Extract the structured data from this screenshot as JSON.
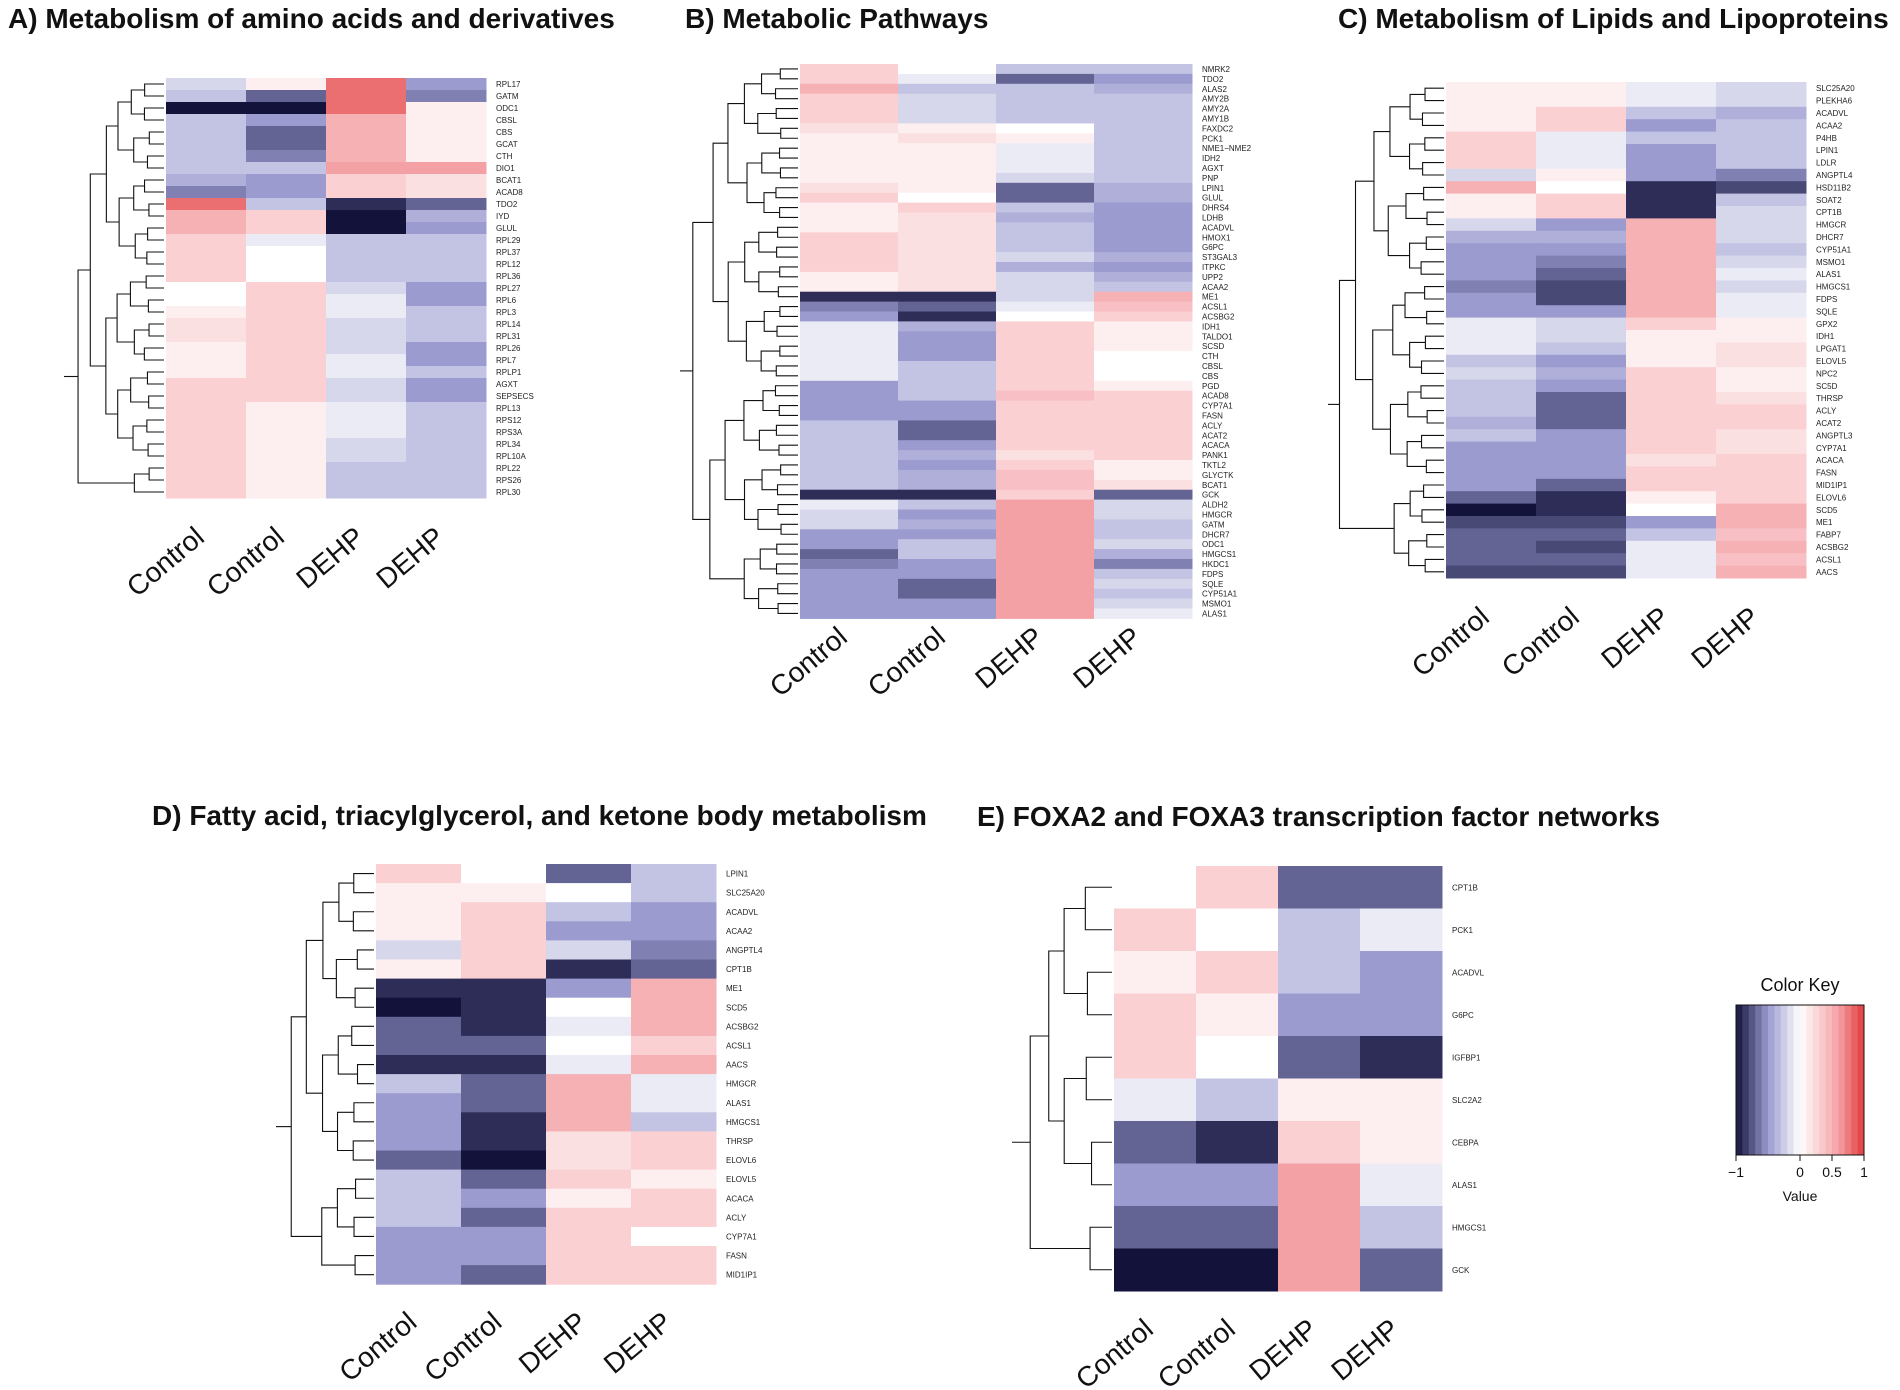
{
  "figure": {
    "width": 1900,
    "height": 1390,
    "description_colors": {
      "low": "#1a1a3d",
      "mid": "#ffffff",
      "high": "#e45a5a"
    }
  },
  "chart_data": [
    {
      "id": "A",
      "type": "heatmap",
      "title": "A) Metabolism of amino acids and derivatives",
      "columns": [
        "Control",
        "Control",
        "DEHP",
        "DEHP"
      ],
      "rows": [
        "RPL17",
        "GATM",
        "ODC1",
        "CBSL",
        "CBS",
        "GCAT",
        "CTH",
        "DIO1",
        "BCAT1",
        "ACAD8",
        "TDO2",
        "IYD",
        "GLUL",
        "RPL29",
        "RPL37",
        "RPL12",
        "RPL36",
        "RPL27",
        "RPL6",
        "RPL3",
        "RPL14",
        "RPL31",
        "RPL26",
        "RPL7",
        "RPLP1",
        "AGXT",
        "SEPSECS",
        "RPL13",
        "RPS12",
        "RPS3A",
        "RPL34",
        "RPL10A",
        "RPL22",
        "RPS26",
        "RPL30"
      ],
      "values": [
        [
          -0.2,
          0.1,
          0.8,
          -0.5
        ],
        [
          -0.3,
          -0.7,
          0.8,
          -0.6
        ],
        [
          -1,
          -1,
          0.8,
          0.1
        ],
        [
          -0.3,
          -0.5,
          0.5,
          0.1
        ],
        [
          -0.3,
          -0.7,
          0.5,
          0.1
        ],
        [
          -0.3,
          -0.7,
          0.5,
          0.1
        ],
        [
          -0.3,
          -0.6,
          0.5,
          0.1
        ],
        [
          -0.3,
          -0.3,
          0.6,
          0.6
        ],
        [
          -0.4,
          -0.5,
          0.3,
          0.2
        ],
        [
          -0.6,
          -0.5,
          0.3,
          0.2
        ],
        [
          0.8,
          -0.3,
          -0.9,
          -0.7
        ],
        [
          0.5,
          0.3,
          -1,
          -0.4
        ],
        [
          0.5,
          0.3,
          -1,
          -0.5
        ],
        [
          0.3,
          -0.1,
          -0.3,
          -0.3
        ],
        [
          0.3,
          0,
          -0.3,
          -0.3
        ],
        [
          0.3,
          0,
          -0.3,
          -0.3
        ],
        [
          0.3,
          0,
          -0.3,
          -0.3
        ],
        [
          0,
          0.3,
          -0.2,
          -0.5
        ],
        [
          0,
          0.3,
          -0.1,
          -0.5
        ],
        [
          0.1,
          0.3,
          -0.1,
          -0.3
        ],
        [
          0.2,
          0.3,
          -0.2,
          -0.3
        ],
        [
          0.2,
          0.3,
          -0.2,
          -0.3
        ],
        [
          0.1,
          0.3,
          -0.2,
          -0.5
        ],
        [
          0.1,
          0.3,
          -0.1,
          -0.5
        ],
        [
          0.1,
          0.3,
          -0.1,
          -0.3
        ],
        [
          0.3,
          0.3,
          -0.2,
          -0.5
        ],
        [
          0.3,
          0.3,
          -0.2,
          -0.5
        ],
        [
          0.3,
          0.1,
          -0.1,
          -0.3
        ],
        [
          0.3,
          0.1,
          -0.1,
          -0.3
        ],
        [
          0.3,
          0.1,
          -0.1,
          -0.3
        ],
        [
          0.3,
          0.1,
          -0.2,
          -0.3
        ],
        [
          0.3,
          0.1,
          -0.2,
          -0.3
        ],
        [
          0.3,
          0.1,
          -0.3,
          -0.3
        ],
        [
          0.3,
          0.1,
          -0.3,
          -0.3
        ],
        [
          0.3,
          0.1,
          -0.3,
          -0.3
        ]
      ]
    },
    {
      "id": "B",
      "type": "heatmap",
      "title": "B) Metabolic Pathways",
      "columns": [
        "Control",
        "Control",
        "DEHP",
        "DEHP"
      ],
      "rows": [
        "NMRK2",
        "TDO2",
        "ALAS2",
        "AMY2B",
        "AMY2A",
        "AMY1B",
        "FAXDC2",
        "PCK1",
        "NME1−NME2",
        "IDH2",
        "AGXT",
        "PNP",
        "LPIN1",
        "GLUL",
        "DHRS4",
        "LDHB",
        "ACADVL",
        "HMOX1",
        "G6PC",
        "ST3GAL3",
        "ITPKC",
        "UPP2",
        "ACAA2",
        "ME1",
        "ACSL1",
        "ACSBG2",
        "IDH1",
        "TALDO1",
        "SCSD",
        "CTH",
        "CBSL",
        "CBS",
        "PGD",
        "ACAD8",
        "CYP7A1",
        "FASN",
        "ACLY",
        "ACAT2",
        "ACACA",
        "PANK1",
        "TKTL2",
        "GLYCTK",
        "BCAT1",
        "GCK",
        "ALDH2",
        "HMGCR",
        "GATM",
        "DHCR7",
        "ODC1",
        "HMGCS1",
        "HKDC1",
        "FDPS",
        "SQLE",
        "CYP51A1",
        "MSMO1",
        "ALAS1"
      ],
      "values": [
        [
          0.3,
          0,
          -0.3,
          -0.3
        ],
        [
          0.3,
          -0.1,
          -0.7,
          -0.5
        ],
        [
          0.5,
          -0.3,
          -0.3,
          -0.4
        ],
        [
          0.3,
          -0.2,
          -0.3,
          -0.3
        ],
        [
          0.3,
          -0.2,
          -0.3,
          -0.3
        ],
        [
          0.3,
          -0.2,
          -0.3,
          -0.3
        ],
        [
          0.2,
          0.1,
          0,
          -0.3
        ],
        [
          0.1,
          0.2,
          0.1,
          -0.3
        ],
        [
          0.1,
          0.1,
          -0.1,
          -0.3
        ],
        [
          0.1,
          0.1,
          -0.1,
          -0.3
        ],
        [
          0.1,
          0.1,
          -0.1,
          -0.3
        ],
        [
          0.1,
          0.1,
          -0.2,
          -0.3
        ],
        [
          0.2,
          0.1,
          -0.7,
          -0.4
        ],
        [
          0.3,
          0,
          -0.7,
          -0.4
        ],
        [
          0.1,
          0.3,
          -0.3,
          -0.5
        ],
        [
          0.1,
          0.2,
          -0.4,
          -0.5
        ],
        [
          0.1,
          0.2,
          -0.3,
          -0.5
        ],
        [
          0.3,
          0.2,
          -0.3,
          -0.5
        ],
        [
          0.3,
          0.2,
          -0.3,
          -0.5
        ],
        [
          0.3,
          0.2,
          -0.2,
          -0.4
        ],
        [
          0.3,
          0.2,
          -0.4,
          -0.5
        ],
        [
          0.1,
          0.2,
          -0.2,
          -0.4
        ],
        [
          0.1,
          0.2,
          -0.2,
          -0.3
        ],
        [
          -0.9,
          -0.9,
          -0.2,
          0.5
        ],
        [
          -0.6,
          -0.7,
          -0.1,
          0.4
        ],
        [
          -0.5,
          -0.9,
          0,
          0.3
        ],
        [
          -0.1,
          -0.4,
          0.3,
          0.1
        ],
        [
          -0.1,
          -0.5,
          0.3,
          0.1
        ],
        [
          -0.1,
          -0.5,
          0.3,
          0.1
        ],
        [
          -0.1,
          -0.5,
          0.3,
          0
        ],
        [
          -0.1,
          -0.3,
          0.3,
          0
        ],
        [
          -0.1,
          -0.3,
          0.3,
          0
        ],
        [
          -0.5,
          -0.3,
          0.3,
          0.1
        ],
        [
          -0.5,
          -0.3,
          0.4,
          0.3
        ],
        [
          -0.5,
          -0.5,
          0.3,
          0.3
        ],
        [
          -0.5,
          -0.5,
          0.3,
          0.3
        ],
        [
          -0.3,
          -0.7,
          0.3,
          0.3
        ],
        [
          -0.3,
          -0.7,
          0.3,
          0.3
        ],
        [
          -0.3,
          -0.5,
          0.3,
          0.3
        ],
        [
          -0.3,
          -0.4,
          0.2,
          0.3
        ],
        [
          -0.3,
          -0.5,
          0.3,
          0.1
        ],
        [
          -0.3,
          -0.4,
          0.4,
          0.1
        ],
        [
          -0.3,
          -0.4,
          0.4,
          0.2
        ],
        [
          -0.9,
          -0.9,
          0.3,
          -0.7
        ],
        [
          -0.1,
          -0.3,
          0.6,
          -0.2
        ],
        [
          -0.2,
          -0.5,
          0.6,
          -0.2
        ],
        [
          -0.2,
          -0.4,
          0.6,
          -0.3
        ],
        [
          -0.5,
          -0.5,
          0.6,
          -0.3
        ],
        [
          -0.5,
          -0.3,
          0.6,
          -0.2
        ],
        [
          -0.7,
          -0.3,
          0.6,
          -0.4
        ],
        [
          -0.6,
          -0.5,
          0.6,
          -0.6
        ],
        [
          -0.5,
          -0.5,
          0.6,
          -0.3
        ],
        [
          -0.5,
          -0.7,
          0.6,
          -0.2
        ],
        [
          -0.5,
          -0.7,
          0.6,
          -0.3
        ],
        [
          -0.5,
          -0.5,
          0.6,
          -0.2
        ],
        [
          -0.5,
          -0.5,
          0.6,
          -0.1
        ]
      ]
    },
    {
      "id": "C",
      "type": "heatmap",
      "title": "C) Metabolism of Lipids and Lipoproteins",
      "columns": [
        "Control",
        "Control",
        "DEHP",
        "DEHP"
      ],
      "rows": [
        "SLC25A20",
        "PLEKHA6",
        "ACADVL",
        "ACAA2",
        "P4HB",
        "LPIN1",
        "LDLR",
        "ANGPTL4",
        "HSD11B2",
        "SOAT2",
        "CPT1B",
        "HMGCR",
        "DHCR7",
        "CYP51A1",
        "MSMO1",
        "ALAS1",
        "HMGCS1",
        "FDPS",
        "SQLE",
        "GPX2",
        "IDH1",
        "LPGAT1",
        "ELOVL5",
        "NPC2",
        "SC5D",
        "THRSP",
        "ACLY",
        "ACAT2",
        "ANGPTL3",
        "CYP7A1",
        "ACACA",
        "FASN",
        "MID1IP1",
        "ELOVL6",
        "SCD5",
        "ME1",
        "FABP7",
        "ACSBG2",
        "ACSL1",
        "AACS"
      ],
      "values": [
        [
          0.1,
          0.1,
          -0.1,
          -0.2
        ],
        [
          0.1,
          0.1,
          -0.1,
          -0.2
        ],
        [
          0.1,
          0.3,
          -0.3,
          -0.4
        ],
        [
          0.1,
          0.3,
          -0.5,
          -0.3
        ],
        [
          0.3,
          -0.1,
          -0.3,
          -0.3
        ],
        [
          0.3,
          -0.1,
          -0.5,
          -0.3
        ],
        [
          0.3,
          -0.1,
          -0.5,
          -0.3
        ],
        [
          -0.2,
          0.1,
          -0.5,
          -0.6
        ],
        [
          0.5,
          0,
          -0.9,
          -0.8
        ],
        [
          0.1,
          0.3,
          -0.9,
          -0.3
        ],
        [
          0.1,
          0.3,
          -0.9,
          -0.2
        ],
        [
          -0.2,
          -0.5,
          0.5,
          -0.2
        ],
        [
          -0.4,
          -0.4,
          0.5,
          -0.2
        ],
        [
          -0.5,
          -0.5,
          0.5,
          -0.3
        ],
        [
          -0.5,
          -0.6,
          0.5,
          -0.2
        ],
        [
          -0.5,
          -0.7,
          0.5,
          -0.1
        ],
        [
          -0.6,
          -0.8,
          0.5,
          -0.2
        ],
        [
          -0.5,
          -0.8,
          0.5,
          -0.1
        ],
        [
          -0.5,
          -0.5,
          0.5,
          -0.1
        ],
        [
          -0.1,
          -0.2,
          0.3,
          0.1
        ],
        [
          -0.1,
          -0.2,
          0.1,
          0.1
        ],
        [
          -0.1,
          -0.3,
          0.1,
          0.2
        ],
        [
          -0.3,
          -0.5,
          0.1,
          0.2
        ],
        [
          -0.2,
          -0.4,
          0.3,
          0.1
        ],
        [
          -0.3,
          -0.5,
          0.3,
          0.1
        ],
        [
          -0.3,
          -0.7,
          0.3,
          0.2
        ],
        [
          -0.3,
          -0.7,
          0.3,
          0.3
        ],
        [
          -0.4,
          -0.7,
          0.3,
          0.3
        ],
        [
          -0.3,
          -0.5,
          0.3,
          0.2
        ],
        [
          -0.5,
          -0.5,
          0.3,
          0.2
        ],
        [
          -0.5,
          -0.5,
          0.2,
          0.3
        ],
        [
          -0.5,
          -0.5,
          0.3,
          0.3
        ],
        [
          -0.5,
          -0.7,
          0.3,
          0.3
        ],
        [
          -0.7,
          -0.9,
          0.1,
          0.3
        ],
        [
          -1,
          -0.9,
          0,
          0.5
        ],
        [
          -0.8,
          -0.8,
          -0.5,
          0.5
        ],
        [
          -0.7,
          -0.7,
          -0.3,
          0.4
        ],
        [
          -0.7,
          -0.8,
          -0.1,
          0.5
        ],
        [
          -0.7,
          -0.7,
          -0.1,
          0.4
        ],
        [
          -0.8,
          -0.8,
          -0.1,
          0.5
        ]
      ]
    },
    {
      "id": "D",
      "type": "heatmap",
      "title": "D) Fatty acid, triacylglycerol, and ketone body metabolism",
      "columns": [
        "Control",
        "Control",
        "DEHP",
        "DEHP"
      ],
      "rows": [
        "LPIN1",
        "SLC25A20",
        "ACADVL",
        "ACAA2",
        "ANGPTL4",
        "CPT1B",
        "ME1",
        "SCD5",
        "ACSBG2",
        "ACSL1",
        "AACS",
        "HMGCR",
        "ALAS1",
        "HMGCS1",
        "THRSP",
        "ELOVL6",
        "ELOVL5",
        "ACACA",
        "ACLY",
        "CYP7A1",
        "FASN",
        "MID1IP1"
      ],
      "values": [
        [
          0.3,
          0,
          -0.7,
          -0.3
        ],
        [
          0.1,
          0.1,
          0,
          -0.3
        ],
        [
          0.1,
          0.3,
          -0.3,
          -0.5
        ],
        [
          0.1,
          0.3,
          -0.5,
          -0.5
        ],
        [
          -0.2,
          0.3,
          -0.2,
          -0.6
        ],
        [
          0.1,
          0.3,
          -0.9,
          -0.7
        ],
        [
          -0.9,
          -0.9,
          -0.5,
          0.5
        ],
        [
          -1,
          -0.9,
          0,
          0.5
        ],
        [
          -0.7,
          -0.9,
          -0.1,
          0.5
        ],
        [
          -0.7,
          -0.7,
          0,
          0.3
        ],
        [
          -0.9,
          -0.9,
          -0.1,
          0.5
        ],
        [
          -0.3,
          -0.7,
          0.5,
          -0.1
        ],
        [
          -0.5,
          -0.7,
          0.5,
          -0.1
        ],
        [
          -0.5,
          -0.9,
          0.5,
          -0.3
        ],
        [
          -0.5,
          -0.9,
          0.2,
          0.3
        ],
        [
          -0.7,
          -1,
          0.2,
          0.3
        ],
        [
          -0.3,
          -0.7,
          0.3,
          0.1
        ],
        [
          -0.3,
          -0.5,
          0.1,
          0.3
        ],
        [
          -0.3,
          -0.7,
          0.3,
          0.3
        ],
        [
          -0.5,
          -0.5,
          0.3,
          0
        ],
        [
          -0.5,
          -0.5,
          0.3,
          0.3
        ],
        [
          -0.5,
          -0.7,
          0.3,
          0.3
        ]
      ]
    },
    {
      "id": "E",
      "type": "heatmap",
      "title": "E) FOXA2 and FOXA3 transcription factor networks",
      "columns": [
        "Control",
        "Control",
        "DEHP",
        "DEHP"
      ],
      "rows": [
        "CPT1B",
        "PCK1",
        "ACADVL",
        "G6PC",
        "IGFBP1",
        "SLC2A2",
        "CEBPA",
        "ALAS1",
        "HMGCS1",
        "GCK"
      ],
      "values": [
        [
          0,
          0.3,
          -0.7,
          -0.7
        ],
        [
          0.3,
          0,
          -0.3,
          -0.1
        ],
        [
          0.1,
          0.3,
          -0.3,
          -0.5
        ],
        [
          0.3,
          0.1,
          -0.5,
          -0.5
        ],
        [
          0.3,
          0,
          -0.7,
          -0.9
        ],
        [
          -0.1,
          -0.3,
          0.1,
          0.1
        ],
        [
          -0.7,
          -0.9,
          0.3,
          0.1
        ],
        [
          -0.5,
          -0.5,
          0.6,
          -0.1
        ],
        [
          -0.7,
          -0.7,
          0.6,
          -0.3
        ],
        [
          -1,
          -1,
          0.6,
          -0.7
        ]
      ]
    }
  ],
  "color_key": {
    "title": "Color Key",
    "xlabel": "Value",
    "range": [
      -1,
      1
    ],
    "ticks": [
      "−1",
      "0",
      "0.5",
      "1"
    ],
    "tick_values": [
      -1,
      0,
      0.5,
      1
    ],
    "bins": 20
  }
}
